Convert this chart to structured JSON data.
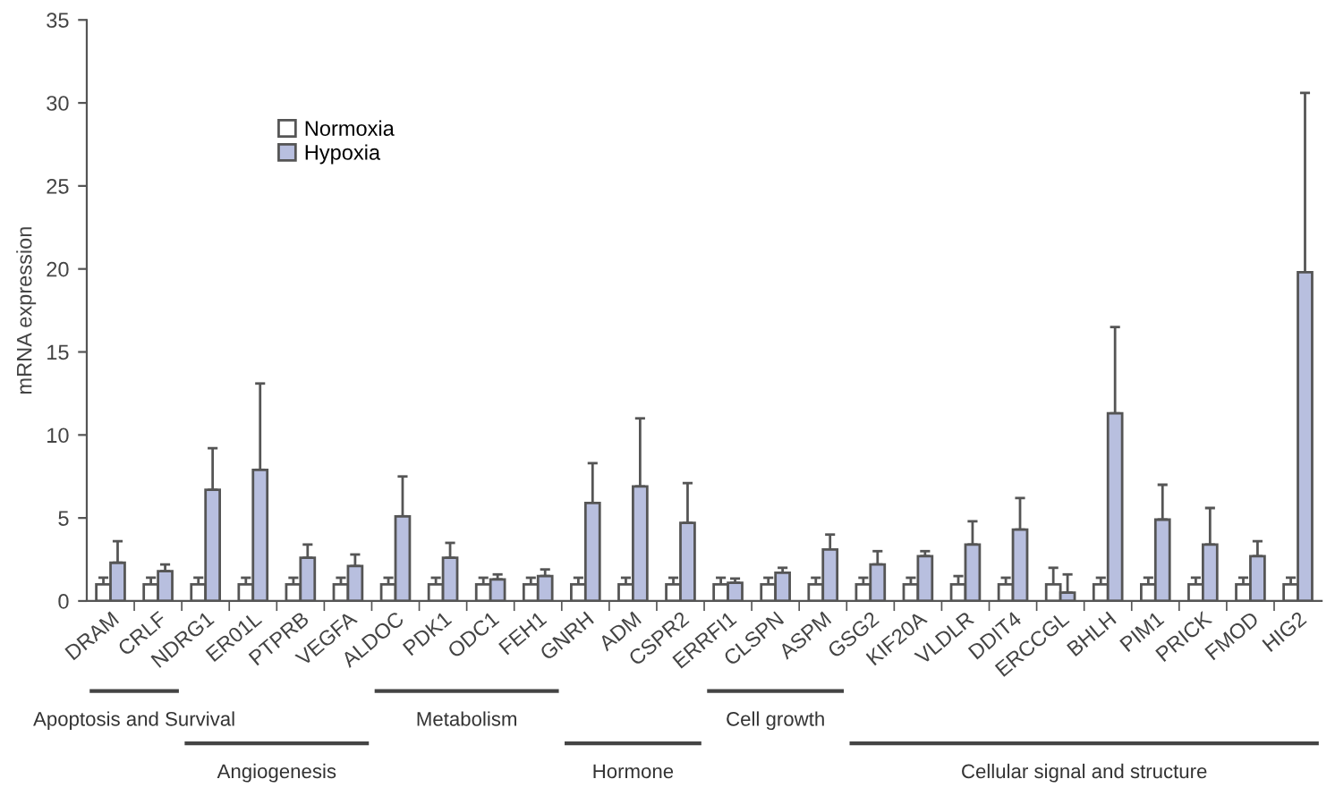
{
  "chart_data": {
    "type": "bar",
    "ylabel": "mRNA expression",
    "categories": [
      "DRAM",
      "CRLF",
      "NDRG1",
      "ER01L",
      "PTPRB",
      "VEGFA",
      "ALDOC",
      "PDK1",
      "ODC1",
      "FEH1",
      "GNRH",
      "ADM",
      "CSPR2",
      "ERRFI1",
      "CLSPN",
      "ASPM",
      "GSG2",
      "KIF20A",
      "VLDLR",
      "DDIT4",
      "ERCCGL",
      "BHLH",
      "PIM1",
      "PRICK",
      "FMOD",
      "HIG2"
    ],
    "series": [
      {
        "name": "Normoxia",
        "color": "#ffffff",
        "values": [
          1,
          1,
          1,
          1,
          1,
          1,
          1,
          1,
          1,
          1,
          1,
          1,
          1,
          1,
          1,
          1,
          1,
          1,
          1,
          1,
          1,
          1,
          1,
          1,
          1,
          1
        ],
        "errors": [
          [
            1,
            1.4
          ],
          [
            1,
            1.4
          ],
          [
            1,
            1.4
          ],
          [
            1,
            1.4
          ],
          [
            1,
            1.4
          ],
          [
            1,
            1.4
          ],
          [
            1,
            1.4
          ],
          [
            1,
            1.4
          ],
          [
            1,
            1.4
          ],
          [
            1,
            1.4
          ],
          [
            1,
            1.4
          ],
          [
            1,
            1.4
          ],
          [
            1,
            1.4
          ],
          [
            1,
            1.4
          ],
          [
            1,
            1.4
          ],
          [
            1,
            1.4
          ],
          [
            1,
            1.4
          ],
          [
            1,
            1.4
          ],
          [
            1,
            1.5
          ],
          [
            1,
            1.4
          ],
          [
            1,
            2.0
          ],
          [
            1,
            1.4
          ],
          [
            1,
            1.4
          ],
          [
            1,
            1.4
          ],
          [
            1,
            1.4
          ],
          [
            1,
            1.4
          ]
        ]
      },
      {
        "name": "Hypoxia",
        "color": "#b8bfdf",
        "values": [
          2.3,
          1.8,
          6.7,
          7.9,
          2.6,
          2.1,
          5.1,
          2.6,
          1.3,
          1.5,
          5.9,
          6.9,
          4.7,
          1.1,
          1.7,
          3.1,
          2.2,
          2.7,
          3.4,
          4.3,
          0.5,
          11.3,
          4.9,
          3.4,
          2.7,
          19.8
        ],
        "errors": [
          [
            2.3,
            3.6
          ],
          [
            1.8,
            2.2
          ],
          [
            6.7,
            9.2
          ],
          [
            7.9,
            13.1
          ],
          [
            2.6,
            3.4
          ],
          [
            2.1,
            2.8
          ],
          [
            5.1,
            7.5
          ],
          [
            2.6,
            3.5
          ],
          [
            1.3,
            1.6
          ],
          [
            1.5,
            1.9
          ],
          [
            5.9,
            8.3
          ],
          [
            6.9,
            11.0
          ],
          [
            4.7,
            7.1
          ],
          [
            1.1,
            1.35
          ],
          [
            1.7,
            2.0
          ],
          [
            3.1,
            4.0
          ],
          [
            2.2,
            3.0
          ],
          [
            2.7,
            3.0
          ],
          [
            3.4,
            4.8
          ],
          [
            4.3,
            6.2
          ],
          [
            0.5,
            1.6
          ],
          [
            11.3,
            16.5
          ],
          [
            4.9,
            7.0
          ],
          [
            3.4,
            5.6
          ],
          [
            2.7,
            3.6
          ],
          [
            19.8,
            30.6
          ]
        ]
      }
    ],
    "ylim": [
      0,
      35
    ],
    "yticks": [
      0,
      5,
      10,
      15,
      20,
      25,
      30,
      35
    ],
    "grid": false,
    "legend": "top left",
    "annotations": [
      "Apoptosis and Survival",
      "Angiogenesis",
      "Metabolism",
      "Hormone",
      "Cell growth",
      "Cellular signal and structure"
    ]
  }
}
